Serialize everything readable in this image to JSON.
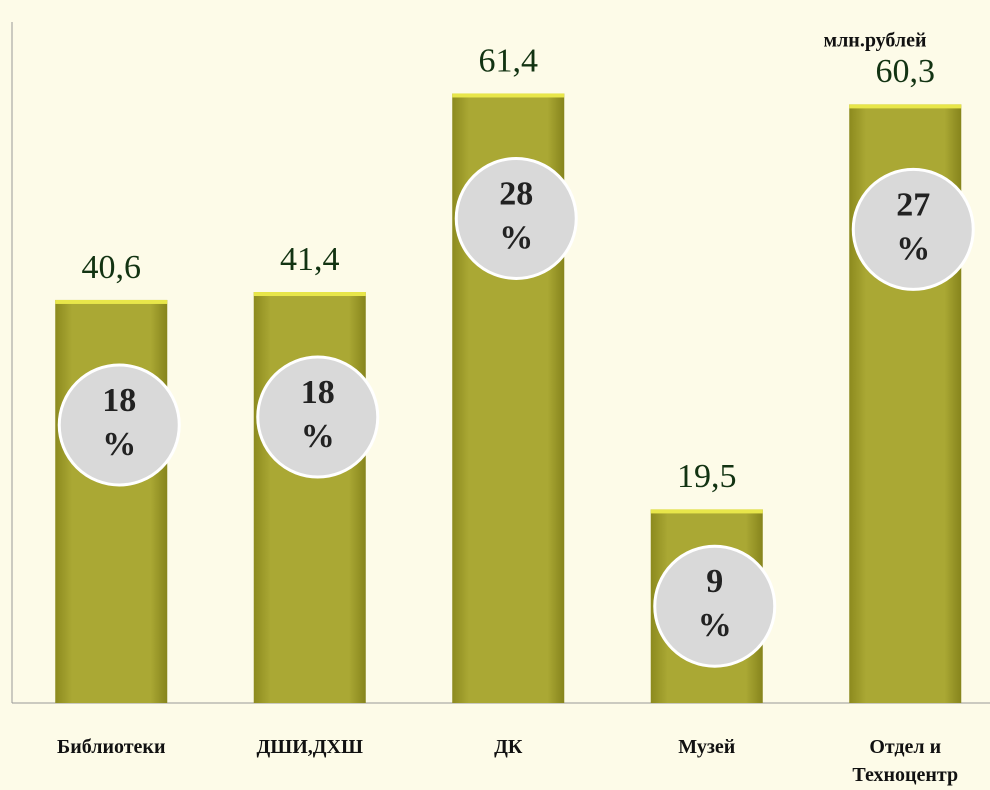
{
  "chart_data": {
    "type": "bar",
    "unit_label": "млн.рублей",
    "categories": [
      "Библиотеки",
      "ДШИ,ДХШ",
      "ДК",
      "Музей",
      "Отдел и Техноцентр"
    ],
    "values": [
      40.6,
      41.4,
      61.4,
      19.5,
      60.3
    ],
    "value_labels": [
      "40,6",
      "41,4",
      "61,4",
      "19,5",
      "60,3"
    ],
    "shares": {
      "values": [
        18,
        18,
        28,
        9,
        27
      ],
      "value_labels": [
        "18 %",
        "18 %",
        "28 %",
        "9 %",
        "27 %"
      ]
    },
    "color": "#a8a832",
    "ylim": [
      0,
      68.6
    ]
  }
}
